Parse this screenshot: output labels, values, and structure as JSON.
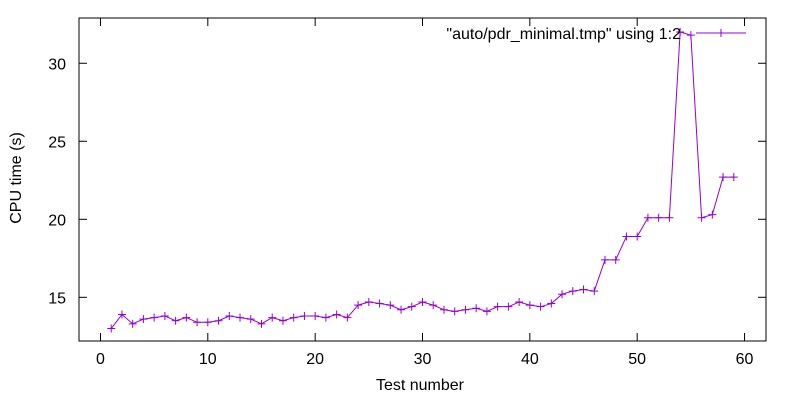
{
  "chart_data": {
    "type": "line",
    "title": "",
    "xlabel": "Test number",
    "ylabel": "CPU time (s)",
    "xlim": [
      -2,
      62
    ],
    "ylim": [
      12.2,
      32.9
    ],
    "xticks": [
      0,
      10,
      20,
      30,
      40,
      50,
      60
    ],
    "yticks": [
      15,
      20,
      25,
      30
    ],
    "grid": false,
    "legend_position": "top-right",
    "colors": {
      "series": "#9400d3",
      "axis": "#000000",
      "background": "#ffffff"
    },
    "series": [
      {
        "name": "\"auto/pdr_minimal.tmp\" using 1:2",
        "marker": "plus",
        "x": [
          1,
          2,
          3,
          4,
          5,
          6,
          7,
          8,
          9,
          10,
          11,
          12,
          13,
          14,
          15,
          16,
          17,
          18,
          19,
          20,
          21,
          22,
          23,
          24,
          25,
          26,
          27,
          28,
          29,
          30,
          31,
          32,
          33,
          34,
          35,
          36,
          37,
          38,
          39,
          40,
          41,
          42,
          43,
          44,
          45,
          46,
          47,
          48,
          49,
          50,
          51,
          52,
          53,
          54,
          55,
          56,
          57,
          58,
          59
        ],
        "y": [
          13.0,
          13.9,
          13.3,
          13.6,
          13.7,
          13.8,
          13.5,
          13.7,
          13.4,
          13.4,
          13.5,
          13.8,
          13.7,
          13.6,
          13.3,
          13.7,
          13.5,
          13.7,
          13.8,
          13.8,
          13.7,
          13.9,
          13.7,
          14.5,
          14.7,
          14.6,
          14.5,
          14.2,
          14.4,
          14.7,
          14.5,
          14.2,
          14.1,
          14.2,
          14.3,
          14.1,
          14.4,
          14.4,
          14.7,
          14.5,
          14.4,
          14.6,
          15.2,
          15.4,
          15.5,
          15.4,
          17.4,
          17.4,
          18.9,
          18.9,
          20.1,
          20.1,
          20.1,
          32.0,
          31.8,
          20.1,
          20.3,
          22.7,
          22.7
        ]
      }
    ]
  }
}
